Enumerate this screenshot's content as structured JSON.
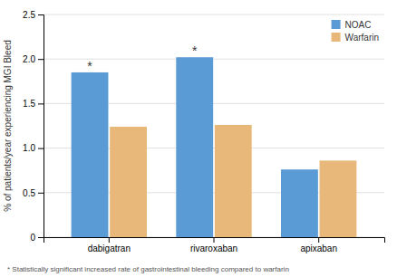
{
  "chart_data": {
    "type": "bar",
    "categories": [
      "dabigatran",
      "rivaroxaban",
      "apixaban"
    ],
    "series": [
      {
        "name": "NOAC",
        "color": "#5B9BD5",
        "values": [
          1.85,
          2.02,
          0.76
        ]
      },
      {
        "name": "Warfarin",
        "color": "#E8B87A",
        "values": [
          1.24,
          1.26,
          0.86
        ]
      }
    ],
    "ylabel": "% of patients/year experiencing MGI Bleed",
    "ylim": [
      0,
      2.5
    ],
    "yticks": [
      0,
      0.5,
      {
        "value": 1,
        "label": "1.0"
      },
      {
        "value": 1.5,
        "label": "1.5"
      },
      {
        "value": 2,
        "label": "2.0"
      },
      2.5
    ],
    "grid": true,
    "legend": "upper right",
    "annotations": [
      {
        "text": "*",
        "series": "NOAC",
        "category": "dabigatran"
      },
      {
        "text": "*",
        "series": "NOAC",
        "category": "rivaroxaban"
      }
    ],
    "footnote": "* Statistically significant increased rate of gastrointestinal bleeding compared to warfarin"
  }
}
